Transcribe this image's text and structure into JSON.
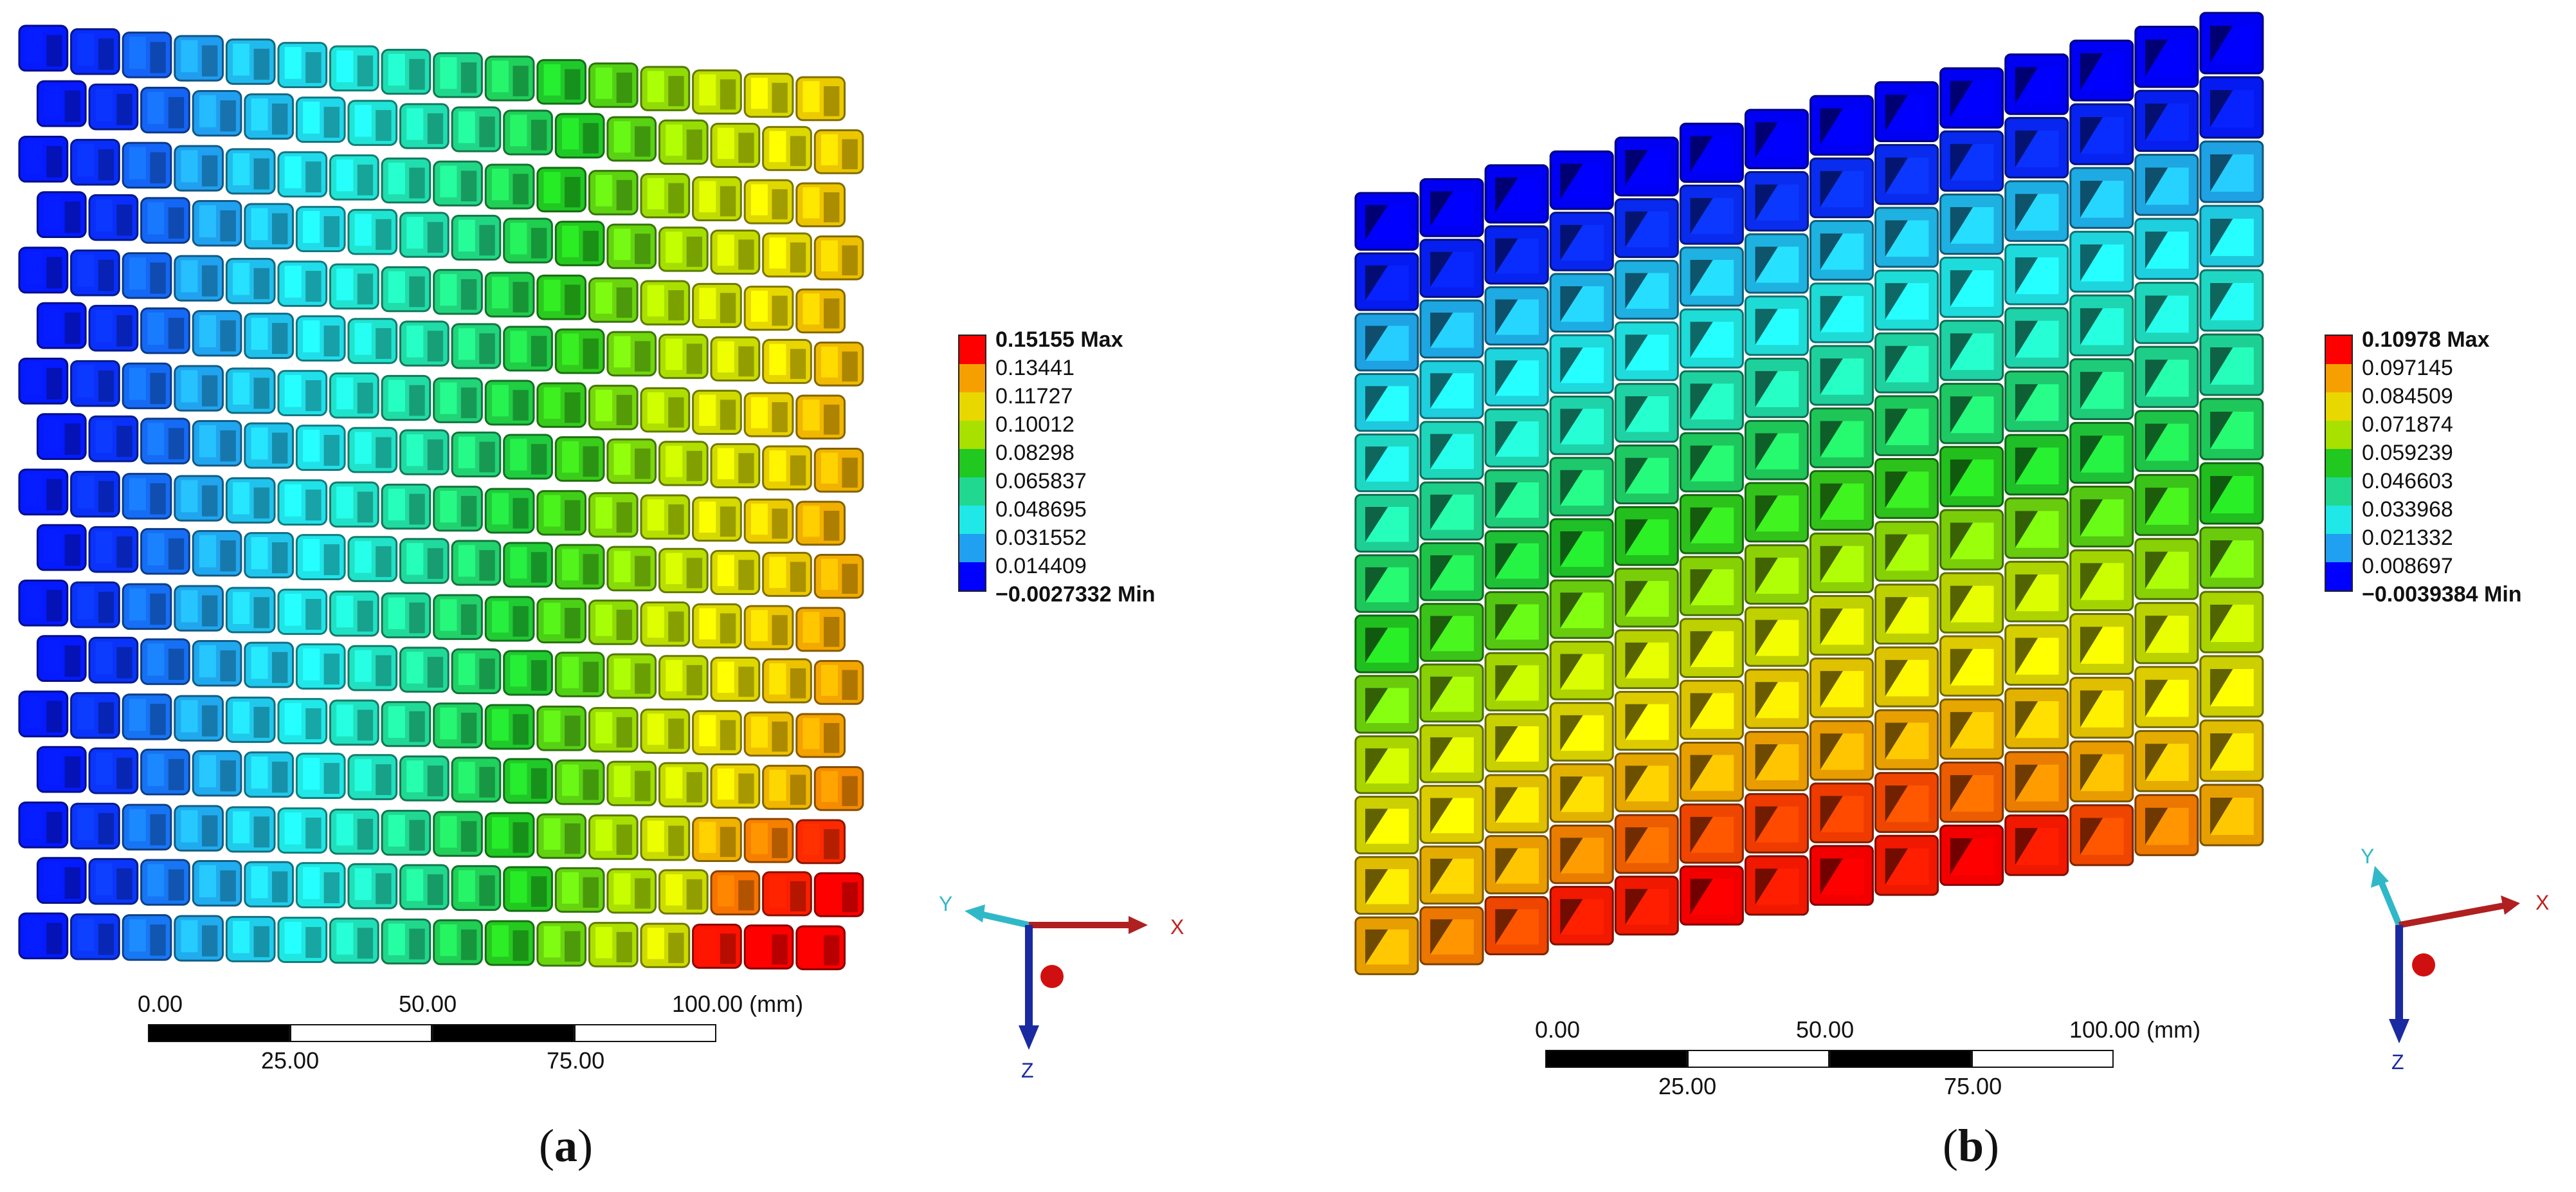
{
  "panels": [
    {
      "id": "a",
      "label": "a",
      "legend": {
        "max_label": "0.15155 Max",
        "min_label": "−0.0027332 Min",
        "values": [
          "0.13441",
          "0.11727",
          "0.10012",
          "0.08298",
          "0.065837",
          "0.048695",
          "0.031552",
          "0.014409"
        ],
        "colors": [
          "#ff0000",
          "#f5a000",
          "#e8d800",
          "#a8e000",
          "#20c820",
          "#20d890",
          "#20e8e8",
          "#20a0f0",
          "#0000ff"
        ]
      },
      "scale": {
        "ticks_top": [
          "0.00",
          "50.00",
          "100.00 (mm)"
        ],
        "ticks_bottom": [
          "25.00",
          "75.00"
        ]
      },
      "triad": {
        "x": "X",
        "y": "Y",
        "z": "Z"
      }
    },
    {
      "id": "b",
      "label": "b",
      "legend": {
        "max_label": "0.10978 Max",
        "min_label": "−0.0039384 Min",
        "values": [
          "0.097145",
          "0.084509",
          "0.071874",
          "0.059239",
          "0.046603",
          "0.033968",
          "0.021332",
          "0.008697"
        ],
        "colors": [
          "#ff0000",
          "#f5a000",
          "#e8d800",
          "#a8e000",
          "#20c820",
          "#20d890",
          "#20e8e8",
          "#20a0f0",
          "#0000ff"
        ]
      },
      "scale": {
        "ticks_top": [
          "0.00",
          "50.00",
          "100.00 (mm)"
        ],
        "ticks_bottom": [
          "25.00",
          "75.00"
        ]
      },
      "triad": {
        "x": "X",
        "y": "Y",
        "z": "Z"
      }
    }
  ]
}
